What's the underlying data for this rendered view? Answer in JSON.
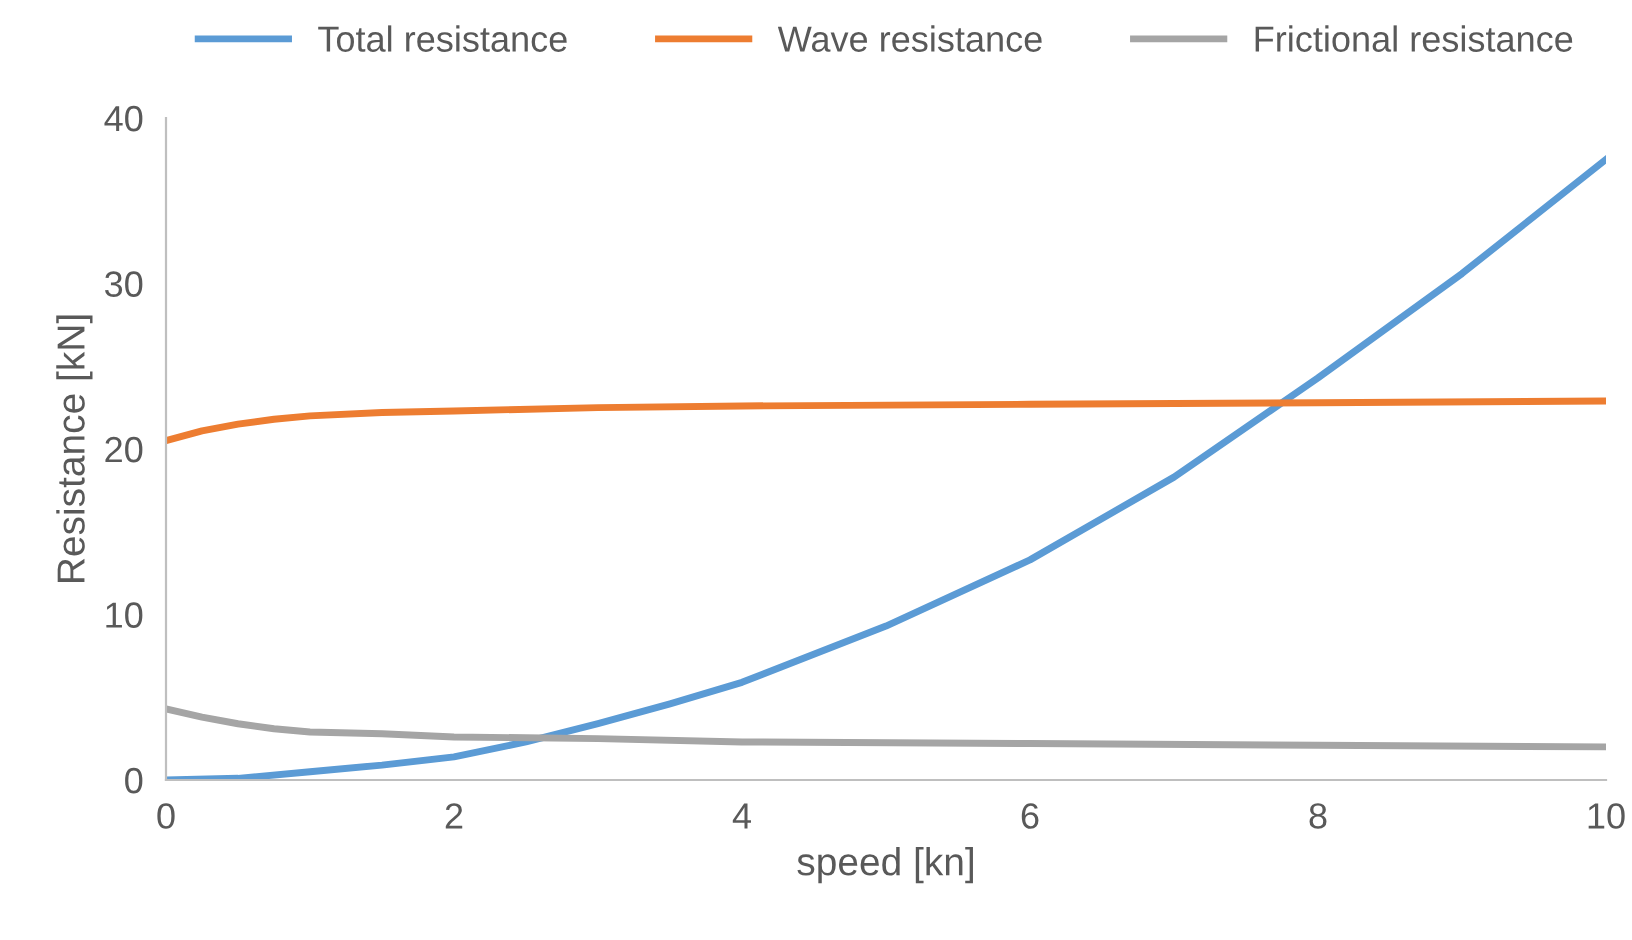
{
  "chart_data": {
    "type": "line",
    "xlabel": "speed [kn]",
    "ylabel": "Resistance [kN]",
    "xlim": [
      0,
      10
    ],
    "xticks": [
      0,
      2,
      4,
      6,
      8,
      10
    ],
    "ylim": [
      0,
      40
    ],
    "yticks": [
      0,
      10,
      20,
      30,
      40
    ],
    "grid": false,
    "legend": "top",
    "marker": "none",
    "line_style": "solid",
    "series": [
      {
        "name": "Total resistance",
        "color": "#5b9bd5",
        "x": [
          0,
          0.5,
          1,
          1.5,
          2,
          2.5,
          3,
          3.5,
          4,
          5,
          6,
          7,
          8,
          9,
          10
        ],
        "values": [
          0,
          0.1,
          0.5,
          0.9,
          1.4,
          2.3,
          3.4,
          4.6,
          5.9,
          9.3,
          13.3,
          18.3,
          24.3,
          30.6,
          37.5
        ]
      },
      {
        "name": "Wave resistance",
        "color": "#ed7d31",
        "x": [
          0,
          0.25,
          0.5,
          0.75,
          1,
          1.5,
          2,
          3,
          4,
          6,
          8,
          10
        ],
        "values": [
          20.5,
          21.1,
          21.5,
          21.8,
          22.0,
          22.2,
          22.3,
          22.5,
          22.6,
          22.7,
          22.8,
          22.9
        ]
      },
      {
        "name": "Frictional resistance",
        "color": "#a5a5a5",
        "x": [
          0,
          0.25,
          0.5,
          0.75,
          1,
          1.5,
          2,
          3,
          4,
          6,
          8,
          10
        ],
        "values": [
          4.3,
          3.8,
          3.4,
          3.1,
          2.9,
          2.8,
          2.6,
          2.5,
          2.3,
          2.2,
          2.1,
          2.0
        ]
      }
    ]
  }
}
